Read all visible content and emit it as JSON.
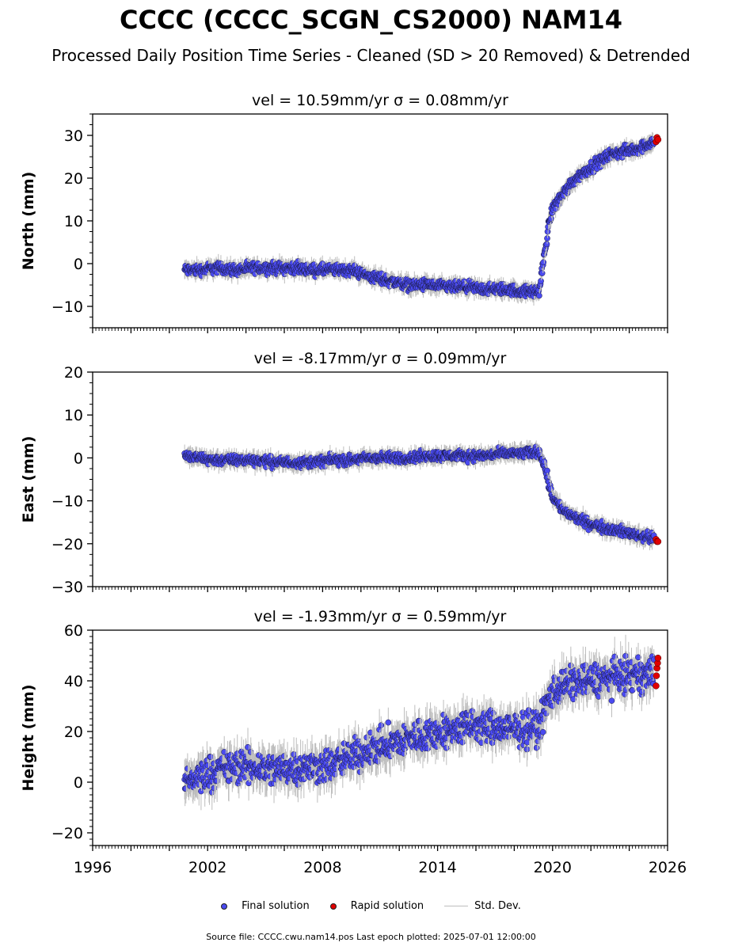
{
  "title": "CCCC (CCCC_SCGN_CS2000) NAM14",
  "subtitle": "Processed Daily Position Time Series - Cleaned (SD > 20 Removed) & Detrended",
  "legend": {
    "final_label": "Final solution",
    "rapid_label": "Rapid solution",
    "std_label": "Std. Dev."
  },
  "footer": "Source file: CCCC.cwu.nam14.pos  Last epoch plotted: 2025-07-01 12:00:00",
  "colors": {
    "final": "#4a4af0",
    "rapid": "#e00000",
    "std": "#bdbdbd"
  },
  "chart_data": [
    {
      "type": "scatter",
      "title": "vel = 10.59mm/yr   σ = 0.08mm/yr",
      "ylabel": "North (mm)",
      "xlim": [
        1996,
        2026
      ],
      "ylim": [
        -15,
        35
      ],
      "yticks": [
        -10,
        0,
        10,
        20,
        30
      ],
      "series": [
        {
          "name": "Final solution",
          "x": [
            2000.8,
            2001.5,
            2002.5,
            2003.5,
            2004.5,
            2005.5,
            2006.5,
            2007.5,
            2008.5,
            2009.5,
            2010.5,
            2011.5,
            2012.5,
            2013.5,
            2014.5,
            2015.5,
            2016.5,
            2017.5,
            2018.5,
            2019.3,
            2019.6,
            2019.8,
            2020.0,
            2020.5,
            2021.0,
            2021.5,
            2022.0,
            2022.5,
            2023.0,
            2023.5,
            2024.0,
            2024.5,
            2025.0,
            2025.3
          ],
          "y": [
            -1.5,
            -1.5,
            -1.0,
            -1.5,
            -1.0,
            -1.0,
            -1.0,
            -1.5,
            -1.5,
            -1.5,
            -3.0,
            -4.0,
            -5.0,
            -5.0,
            -5.5,
            -5.5,
            -6.0,
            -6.0,
            -6.5,
            -6.5,
            3.0,
            9.0,
            13.0,
            16.0,
            19.0,
            21.0,
            22.5,
            24.0,
            25.5,
            26.0,
            26.5,
            27.0,
            28.0,
            28.5
          ]
        },
        {
          "name": "Rapid solution",
          "x": [
            2025.4,
            2025.45,
            2025.5
          ],
          "y": [
            28.5,
            29.5,
            29.0
          ]
        }
      ]
    },
    {
      "type": "scatter",
      "title": "vel = -8.17mm/yr   σ = 0.09mm/yr",
      "ylabel": "East (mm)",
      "xlim": [
        1996,
        2026
      ],
      "ylim": [
        -30,
        20
      ],
      "yticks": [
        -30,
        -20,
        -10,
        0,
        10,
        20
      ],
      "series": [
        {
          "name": "Final solution",
          "x": [
            2000.8,
            2001.5,
            2002.5,
            2003.5,
            2004.5,
            2005.5,
            2006.5,
            2007.5,
            2008.5,
            2009.5,
            2010.5,
            2011.5,
            2012.5,
            2013.5,
            2014.5,
            2015.5,
            2016.5,
            2017.5,
            2018.5,
            2019.3,
            2019.6,
            2019.8,
            2020.0,
            2020.5,
            2021.0,
            2021.5,
            2022.0,
            2022.5,
            2023.0,
            2023.5,
            2024.0,
            2024.5,
            2025.0,
            2025.3
          ],
          "y": [
            0.5,
            0.0,
            -0.5,
            -0.5,
            -0.5,
            -1.0,
            -1.0,
            -1.0,
            -0.5,
            -0.5,
            0.0,
            0.0,
            0.0,
            0.5,
            0.5,
            0.5,
            0.5,
            1.0,
            1.0,
            1.5,
            -2.0,
            -6.0,
            -9.0,
            -12.0,
            -13.5,
            -14.5,
            -15.5,
            -16.0,
            -16.5,
            -17.0,
            -17.5,
            -18.0,
            -18.5,
            -19.0
          ]
        },
        {
          "name": "Rapid solution",
          "x": [
            2025.4,
            2025.45,
            2025.5
          ],
          "y": [
            -19.0,
            -19.5,
            -19.5
          ]
        }
      ]
    },
    {
      "type": "scatter",
      "title": "vel = -1.93mm/yr   σ = 0.59mm/yr",
      "ylabel": "Height (mm)",
      "xlim": [
        1996,
        2026
      ],
      "ylim": [
        -25,
        60
      ],
      "yticks": [
        -20,
        0,
        20,
        40,
        60
      ],
      "xticks": [
        1996,
        2002,
        2008,
        2014,
        2020,
        2026
      ],
      "series": [
        {
          "name": "Final solution",
          "x": [
            2000.8,
            2001.5,
            2002.5,
            2003.5,
            2004.5,
            2005.5,
            2006.5,
            2007.5,
            2008.5,
            2009.5,
            2010.5,
            2011.5,
            2012.5,
            2013.5,
            2014.5,
            2015.5,
            2016.5,
            2017.5,
            2018.5,
            2019.3,
            2019.6,
            2019.8,
            2020.0,
            2020.5,
            2021.0,
            2021.5,
            2022.0,
            2022.5,
            2023.0,
            2023.5,
            2024.0,
            2024.5,
            2025.0,
            2025.3
          ],
          "y": [
            0,
            2,
            5,
            6,
            6,
            5,
            6,
            6,
            7,
            10,
            13,
            15,
            17,
            19,
            20,
            22,
            22,
            21,
            21,
            22,
            28,
            33,
            36,
            38,
            39,
            40,
            40,
            41,
            41,
            42,
            42,
            42,
            43,
            43
          ]
        },
        {
          "name": "Rapid solution",
          "x": [
            2025.4,
            2025.42,
            2025.45,
            2025.48,
            2025.5
          ],
          "y": [
            38,
            42,
            45,
            47,
            49
          ]
        }
      ]
    }
  ]
}
